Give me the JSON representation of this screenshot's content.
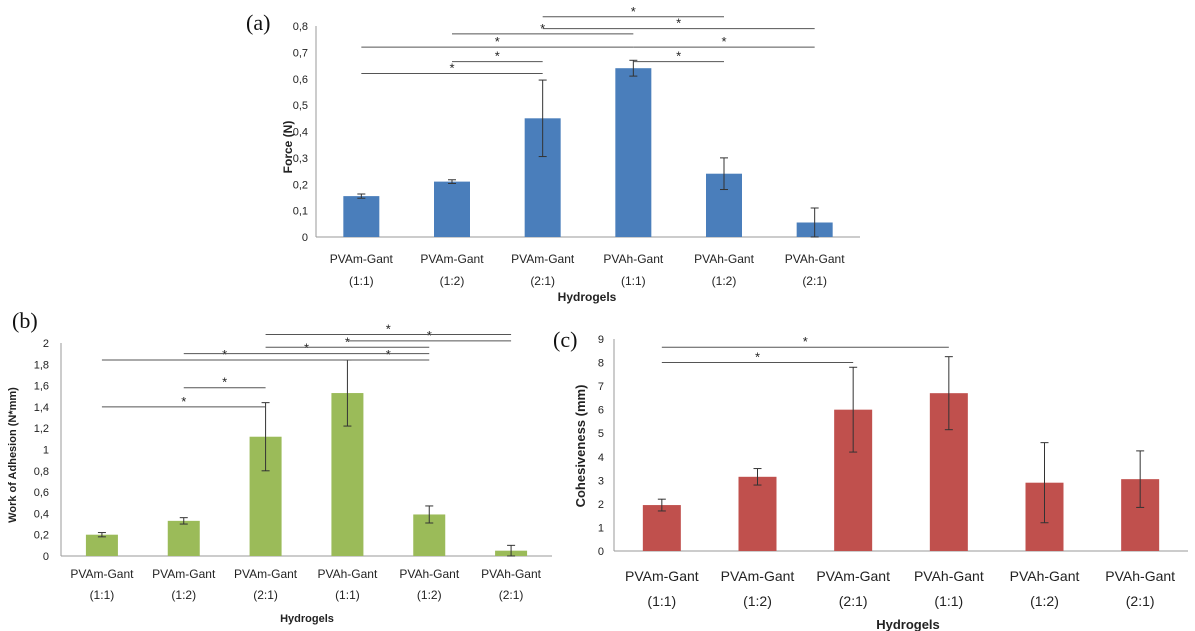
{
  "chart_data": [
    {
      "type": "bar",
      "panel_label": "(a)",
      "ylabel": "Force (N)",
      "xlabel": "Hydrogels",
      "ylim": [
        0,
        0.8
      ],
      "yticks": [
        "0",
        "0,1",
        "0,2",
        "0,3",
        "0,4",
        "0,5",
        "0,6",
        "0,7",
        "0,8"
      ],
      "categories": [
        [
          "PVAm-Gant",
          "(1:1)"
        ],
        [
          "PVAm-Gant",
          "(1:2)"
        ],
        [
          "PVAm-Gant",
          "(2:1)"
        ],
        [
          "PVAh-Gant",
          "(1:1)"
        ],
        [
          "PVAh-Gant",
          "(1:2)"
        ],
        [
          "PVAh-Gant",
          "(2:1)"
        ]
      ],
      "values": [
        0.155,
        0.21,
        0.45,
        0.64,
        0.24,
        0.055
      ],
      "errors": [
        0.008,
        0.007,
        0.145,
        0.03,
        0.06,
        0.055
      ],
      "color": "#4a7ebb",
      "significance": [
        {
          "from": 0,
          "to": 2,
          "y": 0.62,
          "label": "*"
        },
        {
          "from": 1,
          "to": 2,
          "y": 0.665,
          "label": "*"
        },
        {
          "from": 3,
          "to": 4,
          "y": 0.665,
          "label": "*"
        },
        {
          "from": 0,
          "to": 3,
          "y": 0.72,
          "label": "*"
        },
        {
          "from": 3,
          "to": 5,
          "y": 0.72,
          "label": "*"
        },
        {
          "from": 1,
          "to": 3,
          "y": 0.77,
          "label": "*"
        },
        {
          "from": 2,
          "to": 5,
          "y": 0.79,
          "label": "*"
        },
        {
          "from": 2,
          "to": 4,
          "y": 0.835,
          "label": "*"
        }
      ]
    },
    {
      "type": "bar",
      "panel_label": "(b)",
      "ylabel": "Work of Adhesion (N*mm)",
      "xlabel": "Hydrogels",
      "ylim": [
        0,
        2
      ],
      "yticks": [
        "0",
        "0,2",
        "0,4",
        "0,6",
        "0,8",
        "1",
        "1,2",
        "1,4",
        "1,6",
        "1,8",
        "2"
      ],
      "categories": [
        [
          "PVAm-Gant",
          "(1:1)"
        ],
        [
          "PVAm-Gant",
          "(1:2)"
        ],
        [
          "PVAm-Gant",
          "(2:1)"
        ],
        [
          "PVAh-Gant",
          "(1:1)"
        ],
        [
          "PVAh-Gant",
          "(1:2)"
        ],
        [
          "PVAh-Gant",
          "(2:1)"
        ]
      ],
      "values": [
        0.2,
        0.33,
        1.12,
        1.53,
        0.39,
        0.05
      ],
      "errors": [
        0.02,
        0.03,
        0.32,
        0.31,
        0.08,
        0.05
      ],
      "color": "#9bbb59",
      "significance": [
        {
          "from": 0,
          "to": 2,
          "y": 1.4,
          "label": "*"
        },
        {
          "from": 1,
          "to": 2,
          "y": 1.58,
          "label": "*"
        },
        {
          "from": 0,
          "to": 3,
          "y": 1.84,
          "label": "*"
        },
        {
          "from": 3,
          "to": 4,
          "y": 1.84,
          "label": "*"
        },
        {
          "from": 1,
          "to": 4,
          "y": 1.9,
          "label": "*"
        },
        {
          "from": 2,
          "to": 4,
          "y": 1.96,
          "label": "*"
        },
        {
          "from": 3,
          "to": 5,
          "y": 2.02,
          "label": "*"
        },
        {
          "from": 2,
          "to": 5,
          "y": 2.08,
          "label": "*"
        }
      ]
    },
    {
      "type": "bar",
      "panel_label": "(c)",
      "ylabel": "Cohesiveness (mm)",
      "xlabel": "Hydrogels",
      "ylim": [
        0,
        9
      ],
      "yticks": [
        "0",
        "1",
        "2",
        "3",
        "4",
        "5",
        "6",
        "7",
        "8",
        "9"
      ],
      "categories": [
        [
          "PVAm-Gant",
          "(1:1)"
        ],
        [
          "PVAm-Gant",
          "(1:2)"
        ],
        [
          "PVAm-Gant",
          "(2:1)"
        ],
        [
          "PVAh-Gant",
          "(1:1)"
        ],
        [
          "PVAh-Gant",
          "(1:2)"
        ],
        [
          "PVAh-Gant",
          "(2:1)"
        ]
      ],
      "values": [
        1.95,
        3.15,
        6.0,
        6.7,
        2.9,
        3.05
      ],
      "errors": [
        0.25,
        0.35,
        1.8,
        1.55,
        1.7,
        1.2
      ],
      "color": "#c0504d",
      "significance": [
        {
          "from": 0,
          "to": 2,
          "y": 8.0,
          "label": "*"
        },
        {
          "from": 0,
          "to": 3,
          "y": 8.65,
          "label": "*"
        }
      ]
    }
  ]
}
